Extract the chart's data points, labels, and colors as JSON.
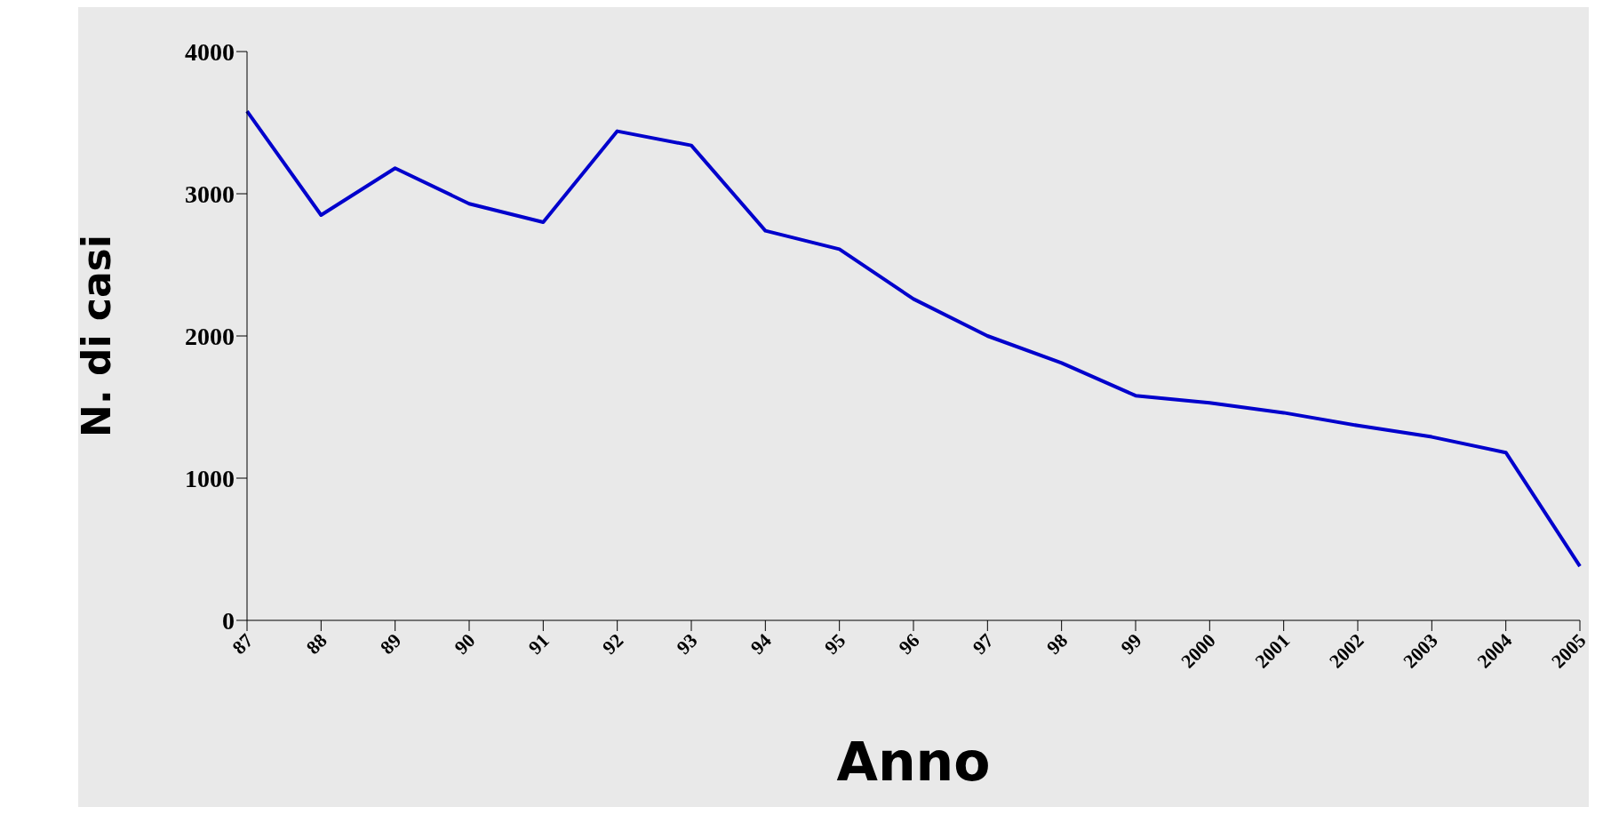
{
  "chart_data": {
    "type": "line",
    "xlabel": "Anno",
    "ylabel": "N. di casi",
    "categories": [
      "87",
      "88",
      "89",
      "90",
      "91",
      "92",
      "93",
      "94",
      "95",
      "96",
      "97",
      "98",
      "99",
      "2000",
      "2001",
      "2002",
      "2003",
      "2004",
      "2005"
    ],
    "series": [
      {
        "color": "#0000cc",
        "values": [
          3580,
          2850,
          3180,
          2930,
          2800,
          3440,
          3340,
          2740,
          2610,
          2260,
          2000,
          1810,
          1580,
          1530,
          1460,
          1370,
          1290,
          1180,
          380
        ]
      }
    ],
    "ylim": [
      0,
      4000
    ],
    "yticks": [
      0,
      1000,
      2000,
      3000,
      4000
    ],
    "marker": "none",
    "line_style": "solid"
  }
}
